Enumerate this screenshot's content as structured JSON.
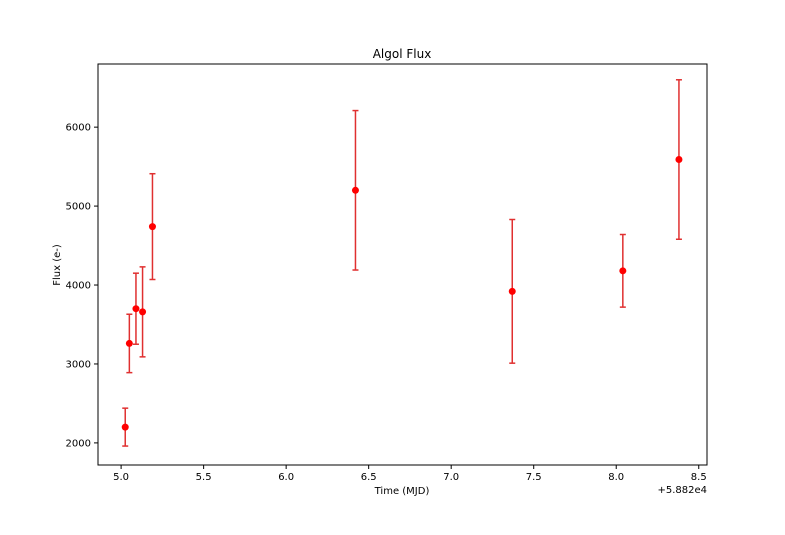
{
  "chart_data": {
    "type": "scatter",
    "title": "Algol Flux",
    "xlabel": "Time (MJD)",
    "ylabel": "Flux (e-)",
    "x_offset_label": "+5.882e4",
    "xlim": [
      4.86,
      8.55
    ],
    "ylim": [
      1720,
      6800
    ],
    "xticks": [
      5.0,
      5.5,
      6.0,
      6.5,
      7.0,
      7.5,
      8.0,
      8.5
    ],
    "xtick_labels": [
      "5.0",
      "5.5",
      "6.0",
      "6.5",
      "7.0",
      "7.5",
      "8.0",
      "8.5"
    ],
    "yticks": [
      2000,
      3000,
      4000,
      5000,
      6000
    ],
    "ytick_labels": [
      "2000",
      "3000",
      "4000",
      "5000",
      "6000"
    ],
    "grid": false,
    "marker_color": "#ff0000",
    "errorbar_color": "#e03030",
    "points": [
      {
        "x": 5.025,
        "y": 2200,
        "yerr": 240
      },
      {
        "x": 5.05,
        "y": 3260,
        "yerr": 370
      },
      {
        "x": 5.09,
        "y": 3700,
        "yerr": 450
      },
      {
        "x": 5.13,
        "y": 3660,
        "yerr": 570
      },
      {
        "x": 5.19,
        "y": 4740,
        "yerr": 670
      },
      {
        "x": 6.42,
        "y": 5200,
        "yerr": 1010
      },
      {
        "x": 7.37,
        "y": 3920,
        "yerr": 910
      },
      {
        "x": 8.04,
        "y": 4180,
        "yerr": 460
      },
      {
        "x": 8.38,
        "y": 5590,
        "yerr": 1010
      }
    ]
  }
}
